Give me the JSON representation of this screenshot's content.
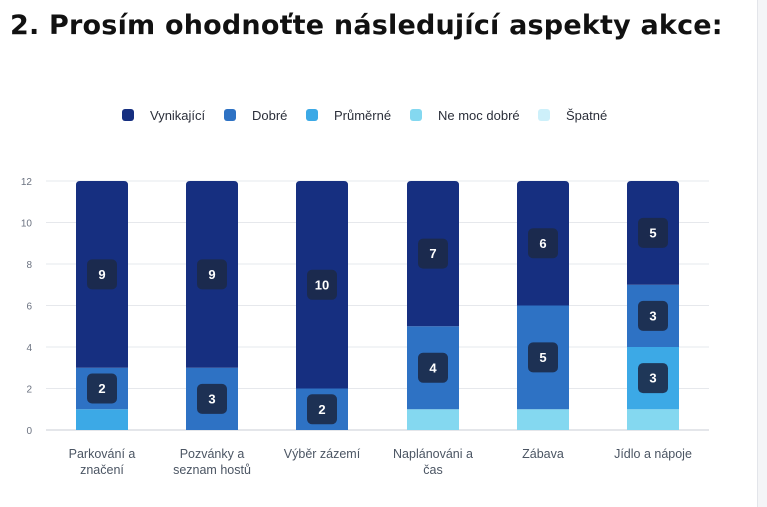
{
  "page": {
    "title": "2. Prosím ohodnoťte následující aspekty akce:"
  },
  "chart_data": {
    "type": "bar",
    "stacked": true,
    "categories": [
      [
        "Parkování a",
        "značení"
      ],
      [
        "Pozvánky a",
        "seznam hostů"
      ],
      [
        "Výběr zázemí"
      ],
      [
        "Naplánováni a",
        "čas"
      ],
      [
        "Zábava"
      ],
      [
        "Jídlo a nápoje"
      ]
    ],
    "series": [
      {
        "name": "Vynikající",
        "color": "#162f80",
        "values": [
          9,
          9,
          10,
          7,
          6,
          5
        ]
      },
      {
        "name": "Dobré",
        "color": "#2e72c4",
        "values": [
          2,
          3,
          2,
          4,
          5,
          3
        ]
      },
      {
        "name": "Průměrné",
        "color": "#3ca9e6",
        "values": [
          1,
          0,
          0,
          0,
          0,
          3
        ]
      },
      {
        "name": "Ne moc dobré",
        "color": "#84d8f0",
        "values": [
          0,
          0,
          0,
          1,
          1,
          1
        ]
      },
      {
        "name": "Špatné",
        "color": "#cdf0fa",
        "values": [
          0,
          0,
          0,
          0,
          0,
          0
        ]
      }
    ],
    "data_labels_min": 2,
    "ylim": [
      0,
      12
    ],
    "yticks": [
      0,
      2,
      4,
      6,
      8,
      10,
      12
    ],
    "grid": true,
    "legend_position": "top-center",
    "xlabel": "",
    "ylabel": ""
  }
}
